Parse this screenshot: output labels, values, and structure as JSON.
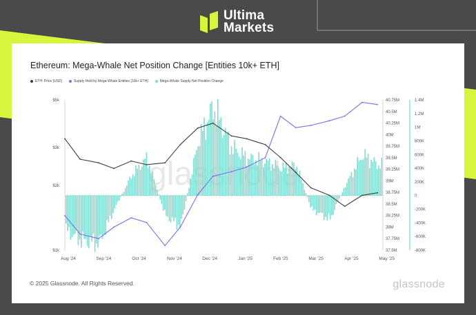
{
  "brand": {
    "line1": "Ultima",
    "line2": "Markets"
  },
  "colors": {
    "background": "#4a4a4a",
    "accent": "#d6f53c",
    "price": "#3d3d3d",
    "supply": "#7b6cf0",
    "net_change": "#7fdcd0"
  },
  "footer": {
    "copyright": "© 2025 Glassnode. All Rights Reserved.",
    "watermark": "glassnode"
  },
  "chart_data": {
    "type": "line",
    "title": "Ethereum: Mega-Whale Net Position Change [Entities 10k+ ETH]",
    "watermark": "glassnode",
    "legend": [
      "ETH: Price [USD]",
      "Supply Held by Mega-Whale Entities [10k+ ETH]",
      "Mega-Whale Supply Net Position Change"
    ],
    "legend_placement": "top-left",
    "grid": false,
    "x_ticks": [
      "Aug '24",
      "Sep '24",
      "Oct '24",
      "Nov '24",
      "Dec '24",
      "Jan '25",
      "Feb '25",
      "Mar '25",
      "Apr '25",
      "May '25"
    ],
    "x": [
      "2024-08-01",
      "2024-08-15",
      "2024-09-01",
      "2024-09-15",
      "2024-10-01",
      "2024-10-15",
      "2024-11-01",
      "2024-11-15",
      "2024-12-01",
      "2024-12-15",
      "2025-01-01",
      "2025-01-15",
      "2025-02-01",
      "2025-02-15",
      "2025-03-01",
      "2025-03-15",
      "2025-04-01",
      "2025-04-15",
      "2025-05-01",
      "2025-05-15"
    ],
    "y_left_ticks": [
      "$5k",
      "$3k",
      "$2k",
      "$1k"
    ],
    "y_left_scale": "log",
    "y_left_range": [
      1000,
      5000
    ],
    "y_mid_ticks": [
      "40.75M",
      "40.5M",
      "40.25M",
      "40M",
      "39.75M",
      "39.5M",
      "39.25M",
      "39M",
      "38.75M",
      "38.5M",
      "38.25M",
      "38M",
      "37.75M",
      "37.5M"
    ],
    "y_mid_range": [
      37.5,
      40.75
    ],
    "y_right_ticks": [
      "1.4M",
      "1.2M",
      "1M",
      "800K",
      "600K",
      "400K",
      "200K",
      "0",
      "-200K",
      "-400K",
      "-600K",
      "-800K"
    ],
    "y_right_range": [
      -800000,
      1400000
    ],
    "series": [
      {
        "name": "ETH: Price [USD]",
        "axis": "left",
        "values": [
          3300,
          2650,
          2550,
          2400,
          2600,
          2500,
          2550,
          3100,
          3700,
          3900,
          3400,
          3300,
          3100,
          2700,
          2300,
          1950,
          1800,
          1600,
          1800,
          1850
        ]
      },
      {
        "name": "Supply Held by Mega-Whale Entities [10k+ ETH]",
        "axis": "mid",
        "values": [
          38.25,
          37.85,
          37.75,
          38.0,
          38.2,
          38.1,
          37.6,
          38.0,
          38.7,
          39.1,
          39.2,
          39.3,
          39.5,
          40.4,
          40.15,
          40.2,
          40.3,
          40.4,
          40.7,
          40.65
        ]
      },
      {
        "name": "Mega-Whale Supply Net Position Change",
        "axis": "right",
        "type": "bar",
        "values": [
          -500000,
          -650000,
          -700000,
          -200000,
          300000,
          550000,
          -300000,
          -450000,
          800000,
          1300000,
          700000,
          550000,
          500000,
          400000,
          450000,
          -200000,
          -350000,
          150000,
          600000,
          450000
        ]
      }
    ]
  }
}
